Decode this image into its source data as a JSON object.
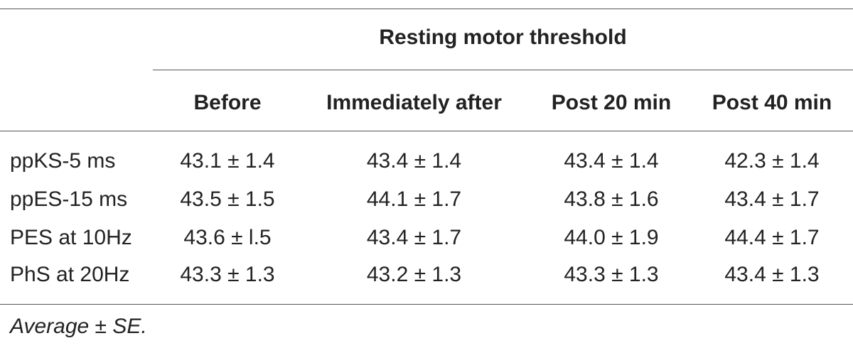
{
  "table": {
    "group_header": "Resting motor threshold",
    "columns": [
      "Before",
      "Immediately after",
      "Post 20 min",
      "Post 40 min"
    ],
    "rows": [
      {
        "label": "ppKS-5 ms",
        "values": [
          "43.1 ± 1.4",
          "43.4 ± 1.4",
          "43.4 ± 1.4",
          "42.3 ± 1.4"
        ]
      },
      {
        "label": "ppES-15 ms",
        "values": [
          "43.5 ± 1.5",
          "44.1 ± 1.7",
          "43.8 ± 1.6",
          "43.4 ± 1.7"
        ]
      },
      {
        "label": "PES at 10Hz",
        "values": [
          "43.6 ± l.5",
          "43.4 ± 1.7",
          "44.0 ± 1.9",
          "44.4 ± 1.7"
        ]
      },
      {
        "label": "PhS at 20Hz",
        "values": [
          "43.3 ± 1.3",
          "43.2 ± 1.3",
          "43.3 ± 1.3",
          "43.4 ± 1.3"
        ]
      }
    ],
    "footnote": "Average ± SE."
  }
}
